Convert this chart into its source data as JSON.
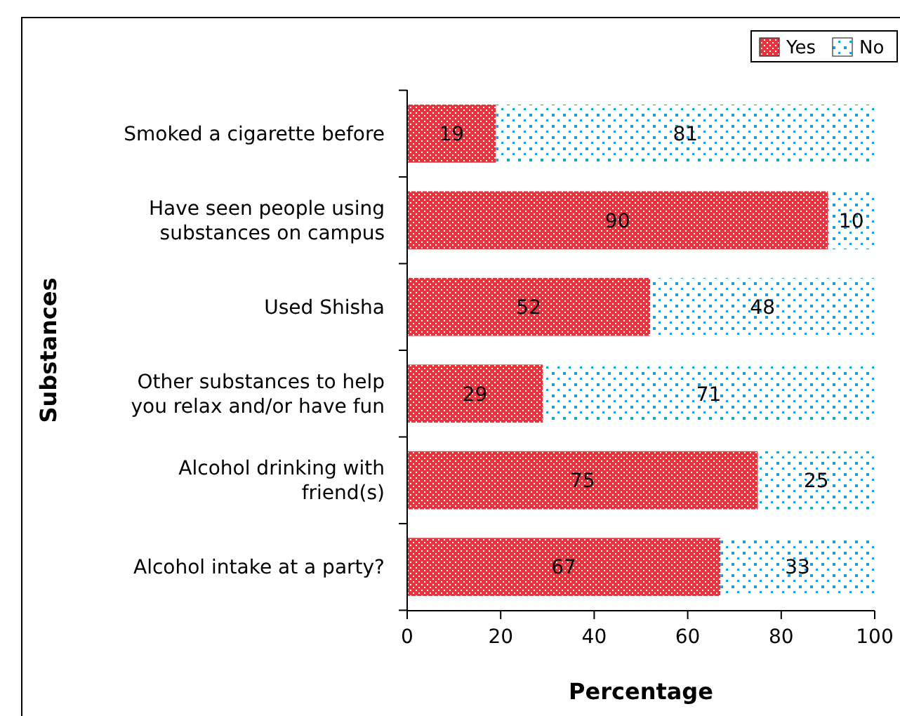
{
  "chart_data": {
    "type": "bar",
    "orientation": "horizontal",
    "stacked": true,
    "xlabel": "Percentage",
    "ylabel": "Substances",
    "categories": [
      "Smoked a cigarette before",
      "Have seen people using substances on campus",
      "Used Shisha",
      "Other substances to help you relax and/or have fun",
      "Alcohol drinking with friend(s)",
      "Alcohol intake at a party?"
    ],
    "series": [
      {
        "name": "Yes",
        "color": "#e8333c",
        "values": [
          19,
          90,
          52,
          29,
          75,
          67
        ]
      },
      {
        "name": "No",
        "color": "#1aa3d9",
        "values": [
          81,
          10,
          48,
          71,
          25,
          33
        ]
      }
    ],
    "xlim": [
      0,
      100
    ],
    "xticks": [
      0,
      20,
      40,
      60,
      80,
      100
    ],
    "data_labels": true,
    "legend": "top right",
    "grid": false
  }
}
